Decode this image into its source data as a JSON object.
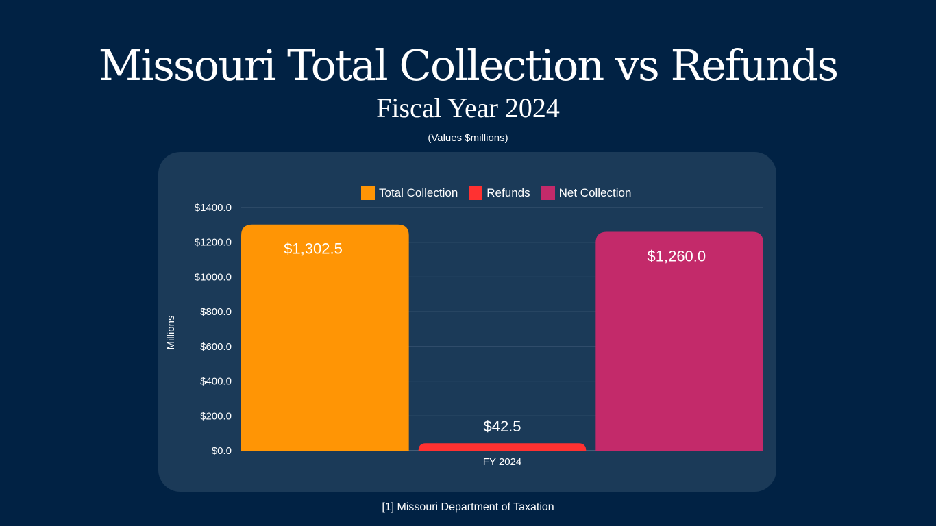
{
  "title": "Missouri Total Collection vs Refunds",
  "subtitle": "Fiscal Year 2024",
  "note": "(Values $millions)",
  "source": "[1] Missouri Department of Taxation",
  "chart_data": {
    "type": "bar",
    "categories": [
      "FY 2024"
    ],
    "series": [
      {
        "name": "Total Collection",
        "values": [
          1302.5
        ],
        "label": "$1,302.5",
        "color": "#ff9505"
      },
      {
        "name": "Refunds",
        "values": [
          42.5
        ],
        "label": "$42.5",
        "color": "#ff3131"
      },
      {
        "name": "Net Collection",
        "values": [
          1260.0
        ],
        "label": "$1,260.0",
        "color": "#c32a6a"
      }
    ],
    "ylabel": "Millions",
    "xlabel": "",
    "ylim": [
      0,
      1400
    ],
    "yticks": [
      0,
      200,
      400,
      600,
      800,
      1000,
      1200,
      1400
    ],
    "ytick_labels": [
      "$0.0",
      "$200.0",
      "$400.0",
      "$600.0",
      "$800.0",
      "$1000.0",
      "$1200.0",
      "$1400.0"
    ],
    "grid": true,
    "legend": "top"
  }
}
